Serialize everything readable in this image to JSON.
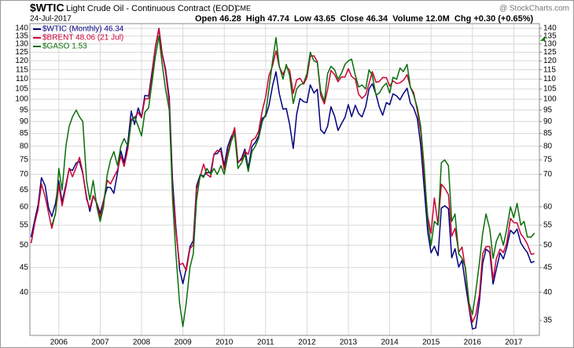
{
  "chart_data": {
    "type": "line",
    "symbol": "$WTIC",
    "title": "Light Crude Oil - Continuous Contract (EOD)",
    "exchange": "CME",
    "date": "24-Jul-2017",
    "quote": "Open 46.28  High 47.74  Low 43.65  Close 46.34  Volume 12.0M  Chg +0.30 (+0.65%)",
    "source": "@ StockCharts.com",
    "log_scale": true,
    "grid": true,
    "legend": "upper left",
    "xlim": [
      2005.3,
      2017.62
    ],
    "xticks": [
      2006,
      2007,
      2008,
      2009,
      2010,
      2011,
      2012,
      2013,
      2014,
      2015,
      2016,
      2017
    ],
    "ylim": [
      32.6,
      143.2
    ],
    "yticks": [
      40,
      45,
      50,
      55,
      60,
      65,
      70,
      75,
      80,
      85,
      90,
      95,
      100,
      105,
      110,
      115,
      120,
      125,
      130,
      135,
      140
    ],
    "y2lim": [
      32.6,
      143.2
    ],
    "y2ticks": [
      35,
      40,
      45,
      50,
      55,
      60,
      70,
      75,
      80,
      85,
      90,
      95,
      100,
      105,
      110,
      115,
      120,
      125,
      130,
      135,
      140
    ],
    "x": [
      2005.33,
      2005.42,
      2005.5,
      2005.58,
      2005.67,
      2005.75,
      2005.83,
      2005.92,
      2006,
      2006.08,
      2006.17,
      2006.25,
      2006.33,
      2006.42,
      2006.5,
      2006.58,
      2006.67,
      2006.75,
      2006.83,
      2006.92,
      2007,
      2007.08,
      2007.17,
      2007.25,
      2007.33,
      2007.42,
      2007.5,
      2007.58,
      2007.67,
      2007.75,
      2007.83,
      2007.92,
      2008,
      2008.08,
      2008.17,
      2008.25,
      2008.33,
      2008.42,
      2008.5,
      2008.58,
      2008.67,
      2008.75,
      2008.83,
      2008.92,
      2009,
      2009.08,
      2009.17,
      2009.25,
      2009.33,
      2009.42,
      2009.5,
      2009.58,
      2009.67,
      2009.75,
      2009.83,
      2009.92,
      2010,
      2010.08,
      2010.17,
      2010.25,
      2010.33,
      2010.42,
      2010.5,
      2010.58,
      2010.67,
      2010.75,
      2010.83,
      2010.92,
      2011,
      2011.08,
      2011.17,
      2011.25,
      2011.33,
      2011.42,
      2011.5,
      2011.58,
      2011.67,
      2011.75,
      2011.83,
      2011.92,
      2012,
      2012.08,
      2012.17,
      2012.25,
      2012.33,
      2012.42,
      2012.5,
      2012.58,
      2012.67,
      2012.75,
      2012.83,
      2012.92,
      2013,
      2013.08,
      2013.17,
      2013.25,
      2013.33,
      2013.42,
      2013.5,
      2013.58,
      2013.67,
      2013.75,
      2013.83,
      2013.92,
      2014,
      2014.08,
      2014.17,
      2014.25,
      2014.33,
      2014.42,
      2014.5,
      2014.58,
      2014.67,
      2014.75,
      2014.83,
      2014.92,
      2015,
      2015.08,
      2015.17,
      2015.25,
      2015.33,
      2015.42,
      2015.5,
      2015.58,
      2015.67,
      2015.75,
      2015.83,
      2015.92,
      2016,
      2016.08,
      2016.17,
      2016.25,
      2016.33,
      2016.42,
      2016.5,
      2016.58,
      2016.67,
      2016.75,
      2016.83,
      2016.92,
      2017,
      2017.08,
      2017.17,
      2017.25,
      2017.33,
      2017.42,
      2017.5
    ],
    "series": [
      {
        "name": "$WTIC (Monthly) 46.34",
        "color": "#000080",
        "values": [
          51.97,
          56.5,
          60.57,
          68.94,
          66.24,
          59.76,
          57.32,
          61.04,
          67.92,
          61.41,
          66.63,
          71.88,
          71.29,
          73.93,
          74.4,
          70.26,
          62.91,
          58.73,
          63.13,
          61.05,
          58.14,
          61.79,
          65.87,
          65.71,
          64.01,
          70.68,
          78.21,
          74.04,
          81.66,
          94.53,
          88.71,
          95.98,
          91.75,
          101.84,
          101.58,
          113.46,
          127.35,
          140.0,
          124.08,
          115.46,
          100.64,
          67.81,
          54.43,
          44.6,
          41.68,
          44.76,
          49.66,
          51.12,
          66.31,
          69.89,
          69.45,
          70.61,
          70.61,
          77.0,
          77.28,
          79.36,
          72.89,
          79.66,
          83.76,
          86.15,
          73.97,
          75.63,
          78.95,
          71.92,
          79.97,
          81.43,
          84.11,
          91.38,
          92.19,
          96.97,
          106.72,
          113.93,
          102.7,
          95.42,
          95.7,
          88.81,
          79.2,
          93.19,
          100.36,
          98.83,
          98.48,
          107.07,
          103.02,
          104.87,
          86.53,
          84.96,
          88.06,
          96.47,
          92.19,
          86.24,
          88.91,
          91.82,
          97.49,
          92.05,
          97.23,
          93.46,
          91.97,
          96.56,
          105.03,
          107.65,
          102.33,
          96.38,
          92.72,
          98.42,
          97.49,
          102.59,
          101.58,
          99.74,
          102.71,
          105.37,
          98.17,
          95.96,
          91.16,
          80.54,
          66.15,
          53.27,
          48.24,
          49.76,
          47.6,
          59.63,
          60.3,
          59.47,
          47.12,
          49.2,
          45.09,
          46.59,
          41.65,
          37.04,
          33.62,
          33.75,
          38.34,
          45.92,
          49.1,
          48.33,
          41.6,
          44.7,
          48.24,
          46.86,
          49.44,
          53.72,
          52.81,
          54.01,
          50.6,
          49.33,
          48.32,
          46.04,
          46.34
        ]
      },
      {
        "name": "$BRENT 48.06 (21 Jul)",
        "color": "#cc0033",
        "values": [
          50.5,
          55.6,
          59.4,
          66.9,
          62.9,
          58.4,
          54.2,
          58.3,
          66.5,
          60.3,
          65.9,
          72.1,
          69.2,
          72.4,
          75.9,
          70.6,
          62.2,
          59.6,
          63.3,
          60.9,
          56.9,
          61.5,
          68.1,
          66.9,
          69.1,
          71.5,
          76.5,
          72.7,
          79.2,
          90.9,
          91.6,
          93.9,
          91.6,
          100.1,
          100.3,
          111.4,
          127.8,
          139.8,
          123.6,
          114.1,
          98.1,
          64.9,
          53.5,
          45.6,
          45.9,
          44.3,
          49.2,
          50.1,
          65.3,
          69.3,
          73.5,
          70.0,
          69.1,
          77.0,
          78.5,
          77.9,
          71.5,
          77.6,
          82.7,
          87.4,
          74.3,
          75.0,
          78.1,
          77.0,
          82.3,
          83.2,
          85.9,
          94.8,
          101.0,
          111.8,
          117.4,
          125.9,
          116.7,
          112.5,
          116.7,
          114.9,
          102.8,
          109.6,
          110.5,
          107.4,
          111.0,
          122.7,
          122.9,
          119.5,
          101.9,
          97.8,
          104.9,
          114.6,
          112.4,
          108.7,
          111.2,
          111.1,
          115.6,
          111.4,
          110.0,
          102.4,
          100.4,
          102.2,
          107.7,
          114.0,
          108.4,
          108.8,
          110.9,
          110.8,
          106.4,
          109.1,
          107.8,
          108.1,
          109.4,
          112.4,
          106.0,
          103.2,
          94.7,
          85.9,
          70.2,
          57.3,
          52.9,
          62.6,
          55.1,
          66.8,
          65.6,
          63.6,
          52.2,
          54.2,
          48.4,
          49.6,
          44.6,
          37.3,
          34.7,
          35.9,
          39.6,
          48.1,
          49.7,
          49.7,
          42.5,
          47.0,
          49.1,
          48.3,
          50.5,
          56.8,
          55.7,
          55.6,
          52.8,
          51.7,
          50.3,
          47.9,
          48.06
        ]
      },
      {
        "name": "$GASO 1.53",
        "color": "#0a6e0a",
        "values": [
          null,
          null,
          null,
          null,
          null,
          null,
          55,
          58,
          72,
          65,
          80,
          88,
          92,
          95,
          92,
          90,
          68,
          62,
          68,
          60,
          56,
          60,
          70,
          75,
          78,
          73,
          80,
          83,
          80,
          90,
          92,
          88,
          84,
          94,
          96,
          108,
          122,
          135,
          118,
          105,
          95,
          62,
          48,
          38,
          34,
          38,
          45,
          48,
          62,
          70,
          69,
          72,
          70,
          72,
          70,
          73,
          70,
          76,
          82,
          85,
          72,
          74,
          77,
          71,
          78,
          80,
          83,
          90,
          93,
          105,
          120,
          134,
          117,
          110,
          118,
          112,
          98,
          105,
          107,
          108,
          113,
          125,
          120,
          119,
          104,
          99,
          113,
          117,
          115,
          110,
          113,
          118,
          120,
          121,
          112,
          106,
          107,
          105,
          115,
          112,
          102,
          103,
          106,
          108,
          103,
          111,
          110,
          116,
          114,
          118,
          106,
          102,
          96,
          88,
          73,
          56,
          50,
          56,
          55,
          74,
          75,
          73,
          56,
          58,
          48,
          47,
          45,
          38,
          36,
          40,
          46,
          53,
          58,
          54,
          47,
          51,
          53,
          50,
          54,
          60,
          57,
          61,
          55,
          56,
          52,
          52,
          53
        ]
      }
    ]
  }
}
